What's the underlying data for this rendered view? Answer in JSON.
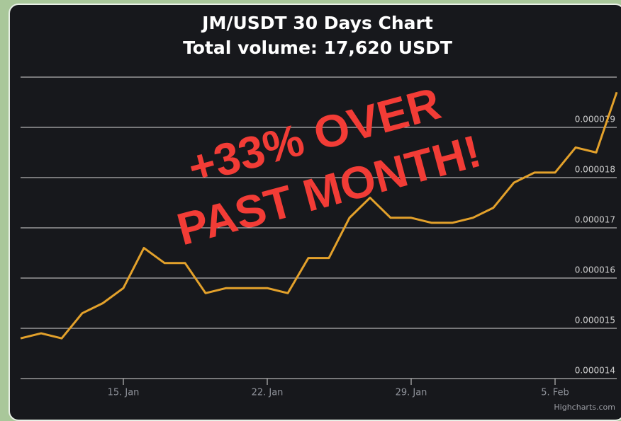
{
  "chart_data": {
    "type": "line",
    "title": "JM/USDT 30 Days Chart",
    "subtitle": "Total volume: 17,620 USDT",
    "annotations": [
      "+33% OVER",
      "PAST MONTH!"
    ],
    "credits": "Highcharts.com",
    "categories": [
      null,
      null,
      null,
      null,
      null,
      "15. Jan",
      null,
      null,
      null,
      null,
      null,
      null,
      "22. Jan",
      null,
      null,
      null,
      null,
      null,
      null,
      "29. Jan",
      null,
      null,
      null,
      null,
      null,
      null,
      "5. Feb",
      null,
      null,
      null
    ],
    "series": [
      {
        "color": "#e3a12b",
        "values": [
          1.48e-05,
          1.49e-05,
          1.48e-05,
          1.53e-05,
          1.55e-05,
          1.58e-05,
          1.66e-05,
          1.63e-05,
          1.63e-05,
          1.57e-05,
          1.58e-05,
          1.58e-05,
          1.58e-05,
          1.57e-05,
          1.64e-05,
          1.64e-05,
          1.72e-05,
          1.76e-05,
          1.72e-05,
          1.72e-05,
          1.71e-05,
          1.71e-05,
          1.72e-05,
          1.74e-05,
          1.79e-05,
          1.81e-05,
          1.81e-05,
          1.86e-05,
          1.85e-05,
          1.97e-05
        ]
      }
    ],
    "ylim": [
      1.4e-05,
      2e-05
    ],
    "yticks": [
      1.4e-05,
      1.5e-05,
      1.6e-05,
      1.7e-05,
      1.8e-05,
      1.9e-05
    ],
    "grid": true
  }
}
